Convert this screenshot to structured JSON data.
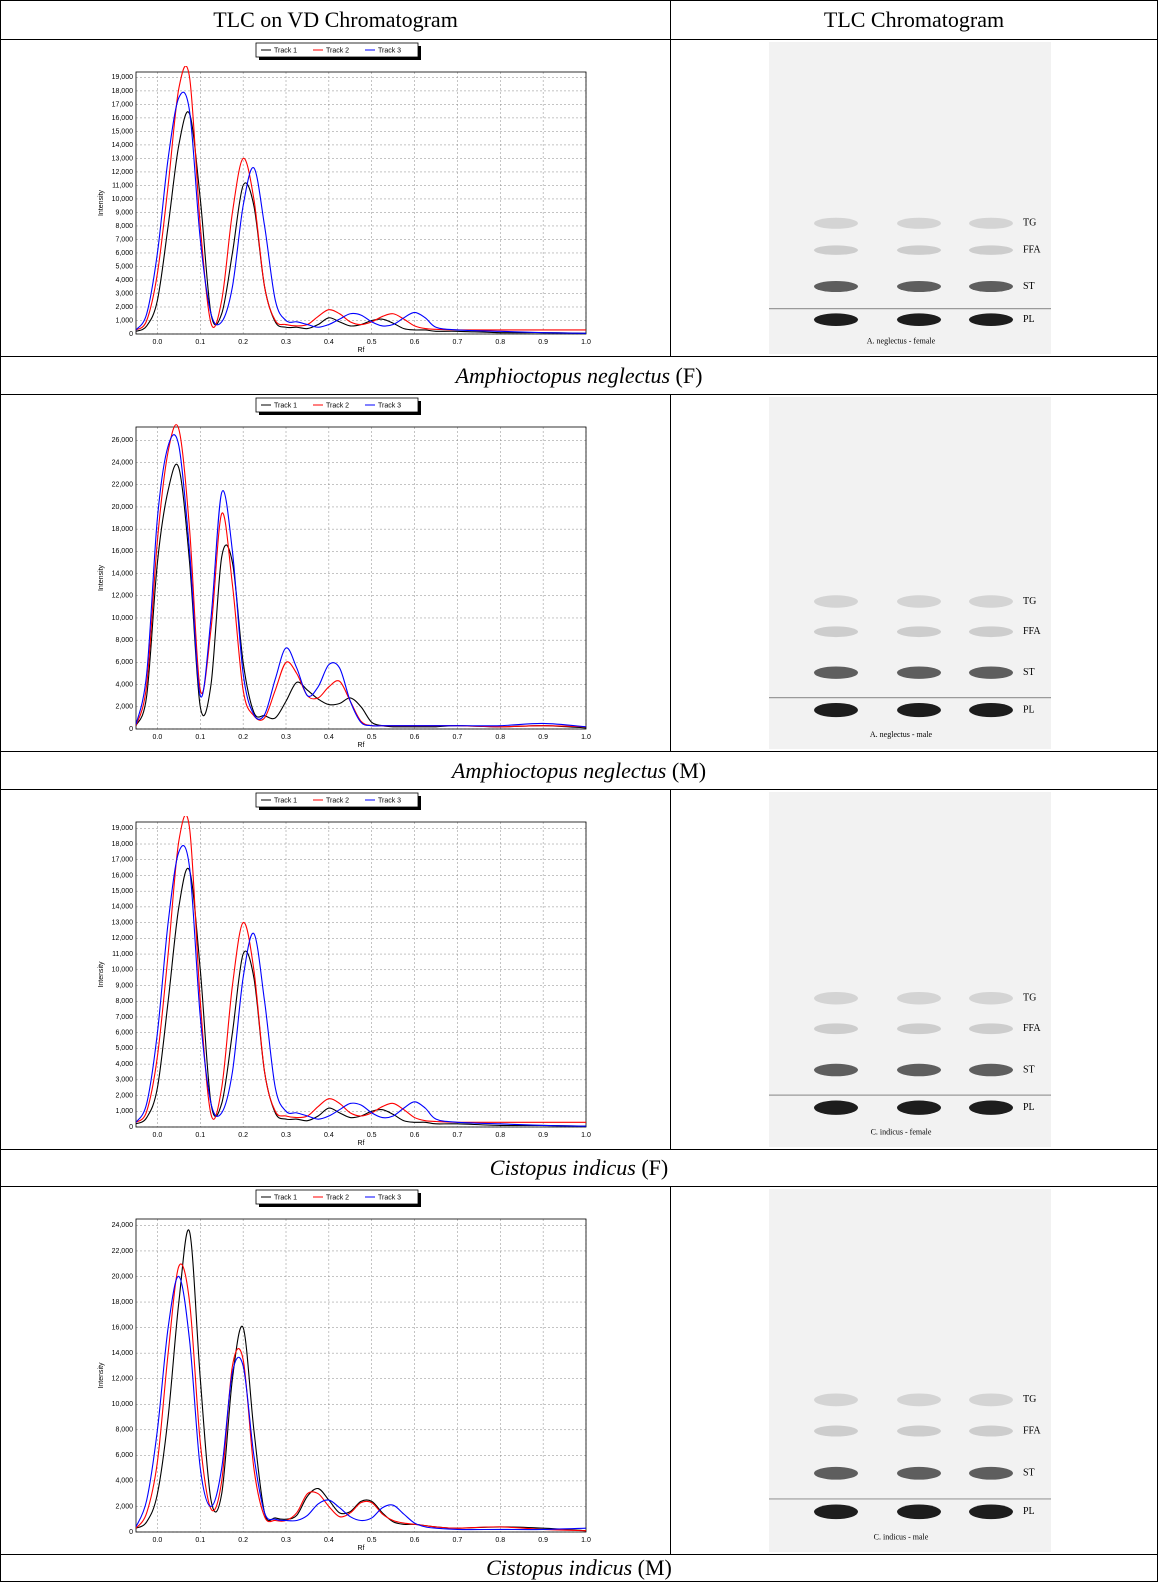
{
  "table": {
    "headers": [
      "TLC on VD Chromatogram",
      "TLC Chromatogram"
    ],
    "rows": [
      {
        "caption": {
          "species": "Amphioctopus neglectus",
          "sex": "(F)"
        },
        "plate": {
          "label": "A. neglectus - female",
          "bands": [
            "TG",
            "FFA",
            "ST",
            "PL"
          ]
        }
      },
      {
        "caption": {
          "species": "Amphioctopus neglectus",
          "sex": "(M)"
        },
        "plate": {
          "label": "A. neglectus - male",
          "bands": [
            "TG",
            "FFA",
            "ST",
            "PL"
          ]
        }
      },
      {
        "caption": {
          "species": "Cistopus indicus",
          "sex": "(F)"
        },
        "plate": {
          "label": "C. indicus - female",
          "bands": [
            "TG",
            "FFA",
            "ST",
            "PL"
          ]
        }
      },
      {
        "caption": {
          "species": "Cistopus indicus",
          "sex": "(M)"
        },
        "plate": {
          "label": "C. indicus - male",
          "bands": [
            "TG",
            "FFA",
            "ST",
            "PL"
          ]
        }
      }
    ]
  },
  "chart_data": [
    {
      "type": "line",
      "xlabel": "Rf",
      "ylabel": "Intensity",
      "grid": true,
      "legend": "top",
      "x": [
        -0.05,
        -0.025,
        0,
        0.025,
        0.05,
        0.075,
        0.1,
        0.125,
        0.15,
        0.175,
        0.2,
        0.225,
        0.25,
        0.275,
        0.3,
        0.325,
        0.35,
        0.375,
        0.4,
        0.425,
        0.45,
        0.475,
        0.5,
        0.525,
        0.55,
        0.575,
        0.6,
        0.625,
        0.65,
        0.7,
        0.8,
        0.9,
        1.0
      ],
      "xlim": [
        -0.05,
        1.0
      ],
      "xticks": [
        {
          "value": 0,
          "label": "0.0"
        },
        0.1,
        0.2,
        0.3,
        0.4,
        0.5,
        0.6,
        0.7,
        0.8,
        0.9,
        {
          "value": 1,
          "label": "1.0"
        }
      ],
      "ylim": [
        0,
        19400
      ],
      "yticks": [
        0,
        {
          "value": 1000,
          "label": "1,000"
        },
        {
          "value": 2000,
          "label": "2,000"
        },
        {
          "value": 3000,
          "label": "3,000"
        },
        {
          "value": 4000,
          "label": "4,000"
        },
        {
          "value": 5000,
          "label": "5,000"
        },
        {
          "value": 6000,
          "label": "6,000"
        },
        {
          "value": 7000,
          "label": "7,000"
        },
        {
          "value": 8000,
          "label": "8,000"
        },
        {
          "value": 9000,
          "label": "9,000"
        },
        {
          "value": 10000,
          "label": "10,000"
        },
        {
          "value": 11000,
          "label": "11,000"
        },
        {
          "value": 12000,
          "label": "12,000"
        },
        {
          "value": 13000,
          "label": "13,000"
        },
        {
          "value": 14000,
          "label": "14,000"
        },
        {
          "value": 15000,
          "label": "15,000"
        },
        {
          "value": 16000,
          "label": "16,000"
        },
        {
          "value": 17000,
          "label": "17,000"
        },
        {
          "value": 18000,
          "label": "18,000"
        },
        {
          "value": 19000,
          "label": "19,000"
        }
      ],
      "series": [
        {
          "name": "Track 1",
          "color": "#000000",
          "values": [
            200,
            600,
            2500,
            8000,
            14000,
            16300,
            10000,
            1500,
            1500,
            6000,
            11000,
            9500,
            3500,
            900,
            500,
            500,
            400,
            700,
            1200,
            900,
            600,
            700,
            1000,
            1100,
            800,
            400,
            300,
            300,
            200,
            200,
            100,
            100,
            50
          ]
        },
        {
          "name": "Track 2",
          "color": "#ff0000",
          "values": [
            300,
            1000,
            4500,
            11000,
            18200,
            19000,
            8000,
            800,
            2500,
            9000,
            13000,
            10000,
            3500,
            1000,
            700,
            600,
            700,
            1300,
            1800,
            1500,
            900,
            700,
            900,
            1300,
            1500,
            1100,
            600,
            400,
            350,
            300,
            300,
            300,
            300
          ]
        },
        {
          "name": "Track 3",
          "color": "#0000ff",
          "values": [
            300,
            1500,
            6000,
            13000,
            17500,
            16500,
            7000,
            1500,
            900,
            3500,
            9500,
            12300,
            8000,
            2500,
            1000,
            900,
            700,
            500,
            700,
            1100,
            1500,
            1400,
            900,
            600,
            700,
            1200,
            1600,
            1200,
            500,
            300,
            200,
            100,
            50
          ]
        }
      ]
    },
    {
      "type": "line",
      "xlabel": "Rf",
      "ylabel": "Intensity",
      "grid": true,
      "legend": "top",
      "x": [
        -0.05,
        -0.025,
        0,
        0.025,
        0.05,
        0.075,
        0.1,
        0.125,
        0.15,
        0.175,
        0.2,
        0.225,
        0.25,
        0.275,
        0.3,
        0.325,
        0.35,
        0.375,
        0.4,
        0.425,
        0.45,
        0.475,
        0.5,
        0.525,
        0.55,
        0.575,
        0.6,
        0.625,
        0.65,
        0.7,
        0.8,
        0.9,
        1.0
      ],
      "xlim": [
        -0.05,
        1.0
      ],
      "xticks": [
        {
          "value": 0,
          "label": "0.0"
        },
        0.1,
        0.2,
        0.3,
        0.4,
        0.5,
        0.6,
        0.7,
        0.8,
        0.9,
        {
          "value": 1,
          "label": "1.0"
        }
      ],
      "ylim": [
        0,
        27200
      ],
      "yticks": [
        0,
        {
          "value": 2000,
          "label": "2,000"
        },
        {
          "value": 4000,
          "label": "4,000"
        },
        {
          "value": 6000,
          "label": "6,000"
        },
        {
          "value": 8000,
          "label": "8,000"
        },
        {
          "value": 10000,
          "label": "10,000"
        },
        {
          "value": 12000,
          "label": "12,000"
        },
        {
          "value": 14000,
          "label": "14,000"
        },
        {
          "value": 16000,
          "label": "16,000"
        },
        {
          "value": 18000,
          "label": "18,000"
        },
        {
          "value": 20000,
          "label": "20,000"
        },
        {
          "value": 22000,
          "label": "22,000"
        },
        {
          "value": 24000,
          "label": "24,000"
        },
        {
          "value": 26000,
          "label": "26,000"
        }
      ],
      "series": [
        {
          "name": "Track 1",
          "color": "#000000",
          "values": [
            300,
            3000,
            15000,
            21500,
            23500,
            15000,
            2000,
            4000,
            15500,
            15000,
            6000,
            1500,
            1200,
            1000,
            2500,
            4200,
            3500,
            2700,
            2200,
            2300,
            2800,
            2000,
            600,
            300,
            200,
            200,
            200,
            200,
            200,
            300,
            200,
            300,
            100
          ]
        },
        {
          "name": "Track 2",
          "color": "#ff0000",
          "values": [
            300,
            4000,
            17000,
            25000,
            27000,
            18000,
            3500,
            9000,
            19400,
            13000,
            3500,
            1200,
            1000,
            3500,
            6000,
            5000,
            3000,
            2800,
            3800,
            4300,
            2500,
            700,
            300,
            300,
            300,
            300,
            300,
            300,
            300,
            300,
            200,
            300,
            200
          ]
        },
        {
          "name": "Track 3",
          "color": "#0000ff",
          "values": [
            400,
            5000,
            19000,
            25500,
            25500,
            16000,
            3000,
            10000,
            21300,
            16000,
            5000,
            1300,
            1300,
            4500,
            7300,
            5500,
            3000,
            3800,
            5800,
            5500,
            2500,
            600,
            300,
            300,
            300,
            300,
            300,
            300,
            300,
            300,
            300,
            500,
            200
          ]
        }
      ]
    },
    {
      "type": "line",
      "xlabel": "Rf",
      "ylabel": "Intensity",
      "grid": true,
      "legend": "top",
      "x": [
        -0.05,
        -0.025,
        0,
        0.025,
        0.05,
        0.075,
        0.1,
        0.125,
        0.15,
        0.175,
        0.2,
        0.225,
        0.25,
        0.275,
        0.3,
        0.325,
        0.35,
        0.375,
        0.4,
        0.425,
        0.45,
        0.475,
        0.5,
        0.525,
        0.55,
        0.575,
        0.6,
        0.625,
        0.65,
        0.7,
        0.8,
        0.9,
        1.0
      ],
      "xlim": [
        -0.05,
        1.0
      ],
      "xticks": [
        {
          "value": 0,
          "label": "0.0"
        },
        0.1,
        0.2,
        0.3,
        0.4,
        0.5,
        0.6,
        0.7,
        0.8,
        0.9,
        {
          "value": 1,
          "label": "1.0"
        }
      ],
      "ylim": [
        0,
        19400
      ],
      "yticks": [
        0,
        {
          "value": 1000,
          "label": "1,000"
        },
        {
          "value": 2000,
          "label": "2,000"
        },
        {
          "value": 3000,
          "label": "3,000"
        },
        {
          "value": 4000,
          "label": "4,000"
        },
        {
          "value": 5000,
          "label": "5,000"
        },
        {
          "value": 6000,
          "label": "6,000"
        },
        {
          "value": 7000,
          "label": "7,000"
        },
        {
          "value": 8000,
          "label": "8,000"
        },
        {
          "value": 9000,
          "label": "9,000"
        },
        {
          "value": 10000,
          "label": "10,000"
        },
        {
          "value": 11000,
          "label": "11,000"
        },
        {
          "value": 12000,
          "label": "12,000"
        },
        {
          "value": 13000,
          "label": "13,000"
        },
        {
          "value": 14000,
          "label": "14,000"
        },
        {
          "value": 15000,
          "label": "15,000"
        },
        {
          "value": 16000,
          "label": "16,000"
        },
        {
          "value": 17000,
          "label": "17,000"
        },
        {
          "value": 18000,
          "label": "18,000"
        },
        {
          "value": 19000,
          "label": "19,000"
        }
      ],
      "series": [
        {
          "name": "Track 1",
          "color": "#000000",
          "values": [
            200,
            600,
            2500,
            8000,
            14000,
            16300,
            10000,
            1500,
            1500,
            6000,
            11000,
            9500,
            3500,
            900,
            500,
            500,
            400,
            700,
            1200,
            900,
            600,
            700,
            1000,
            1100,
            800,
            400,
            300,
            300,
            200,
            200,
            100,
            100,
            50
          ]
        },
        {
          "name": "Track 2",
          "color": "#ff0000",
          "values": [
            300,
            1000,
            4500,
            11000,
            18200,
            19000,
            8000,
            800,
            2500,
            9000,
            13000,
            10000,
            3500,
            1000,
            700,
            600,
            700,
            1300,
            1800,
            1500,
            900,
            700,
            900,
            1300,
            1500,
            1100,
            600,
            400,
            350,
            300,
            300,
            300,
            300
          ]
        },
        {
          "name": "Track 3",
          "color": "#0000ff",
          "values": [
            300,
            1500,
            6000,
            13000,
            17500,
            16500,
            7000,
            1500,
            900,
            3500,
            9500,
            12300,
            8000,
            2500,
            1000,
            900,
            700,
            500,
            700,
            1100,
            1500,
            1400,
            900,
            600,
            700,
            1200,
            1600,
            1200,
            500,
            300,
            200,
            100,
            50
          ]
        }
      ]
    },
    {
      "type": "line",
      "xlabel": "Rf",
      "ylabel": "Intensity",
      "grid": true,
      "legend": "top",
      "x": [
        -0.05,
        -0.025,
        0,
        0.025,
        0.05,
        0.075,
        0.1,
        0.125,
        0.15,
        0.175,
        0.2,
        0.225,
        0.25,
        0.275,
        0.3,
        0.325,
        0.35,
        0.375,
        0.4,
        0.425,
        0.45,
        0.475,
        0.5,
        0.525,
        0.55,
        0.575,
        0.6,
        0.625,
        0.65,
        0.7,
        0.8,
        0.9,
        1.0
      ],
      "xlim": [
        -0.05,
        1.0
      ],
      "xticks": [
        {
          "value": 0,
          "label": "0.0"
        },
        0.1,
        0.2,
        0.3,
        0.4,
        0.5,
        0.6,
        0.7,
        0.8,
        0.9,
        {
          "value": 1,
          "label": "1.0"
        }
      ],
      "ylim": [
        0,
        24500
      ],
      "yticks": [
        0,
        {
          "value": 2000,
          "label": "2,000"
        },
        {
          "value": 4000,
          "label": "4,000"
        },
        {
          "value": 6000,
          "label": "6,000"
        },
        {
          "value": 8000,
          "label": "8,000"
        },
        {
          "value": 10000,
          "label": "10,000"
        },
        {
          "value": 12000,
          "label": "12,000"
        },
        {
          "value": 14000,
          "label": "14,000"
        },
        {
          "value": 16000,
          "label": "16,000"
        },
        {
          "value": 18000,
          "label": "18,000"
        },
        {
          "value": 20000,
          "label": "20,000"
        },
        {
          "value": 22000,
          "label": "22,000"
        },
        {
          "value": 24000,
          "label": "24,000"
        }
      ],
      "series": [
        {
          "name": "Track 1",
          "color": "#000000",
          "values": [
            300,
            800,
            3000,
            9000,
            18000,
            23500,
            12000,
            2500,
            3000,
            12000,
            16000,
            8000,
            1500,
            1100,
            1000,
            1300,
            2800,
            3400,
            2500,
            1500,
            1600,
            2400,
            2400,
            1500,
            800,
            600,
            600,
            500,
            400,
            300,
            400,
            300,
            100
          ]
        },
        {
          "name": "Track 2",
          "color": "#ff0000",
          "values": [
            300,
            1500,
            5500,
            14000,
            20800,
            18000,
            7000,
            1800,
            4000,
            13000,
            13500,
            5000,
            1200,
            900,
            900,
            1500,
            3000,
            3000,
            2000,
            1200,
            1500,
            2300,
            2300,
            1400,
            900,
            700,
            600,
            500,
            400,
            300,
            400,
            200,
            100
          ]
        },
        {
          "name": "Track 3",
          "color": "#0000ff",
          "values": [
            400,
            2500,
            8000,
            16000,
            20000,
            15000,
            5000,
            2000,
            5000,
            12500,
            13000,
            6000,
            1500,
            1000,
            900,
            900,
            1300,
            2200,
            2500,
            1900,
            1200,
            900,
            1100,
            1900,
            2100,
            1400,
            700,
            400,
            300,
            200,
            200,
            200,
            300
          ]
        }
      ]
    }
  ]
}
